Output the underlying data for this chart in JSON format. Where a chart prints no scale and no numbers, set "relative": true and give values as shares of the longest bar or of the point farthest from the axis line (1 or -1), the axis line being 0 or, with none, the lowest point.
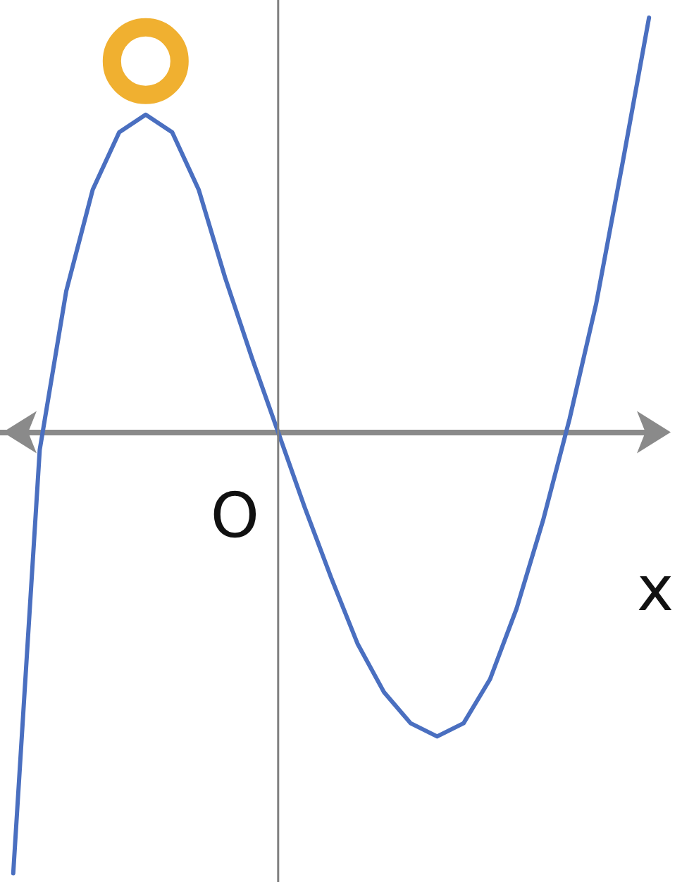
{
  "chart_data": {
    "type": "line",
    "relative": true,
    "xlabel": "x",
    "annotations": [
      "O"
    ],
    "categories": [
      null,
      null,
      null,
      null,
      null,
      null,
      null,
      null,
      null,
      null,
      null,
      null,
      null,
      null,
      null,
      null,
      null,
      null,
      null,
      null,
      null,
      null,
      null,
      null,
      null
    ],
    "series": [
      {
        "color": "#4a6fc0",
        "values": [
          -1,
          -0.04,
          0.32,
          0.55,
          0.68,
          0.72,
          0.68,
          0.55,
          0.35,
          0.17,
          0,
          -0.17,
          -0.33,
          -0.48,
          -0.59,
          -0.66,
          -0.69,
          -0.66,
          -0.56,
          -0.4,
          -0.2,
          0.03,
          0.29,
          0.61,
          0.94
        ]
      }
    ],
    "marker": "none",
    "line_style": "solid",
    "grid": false,
    "tick_labels": false
  }
}
